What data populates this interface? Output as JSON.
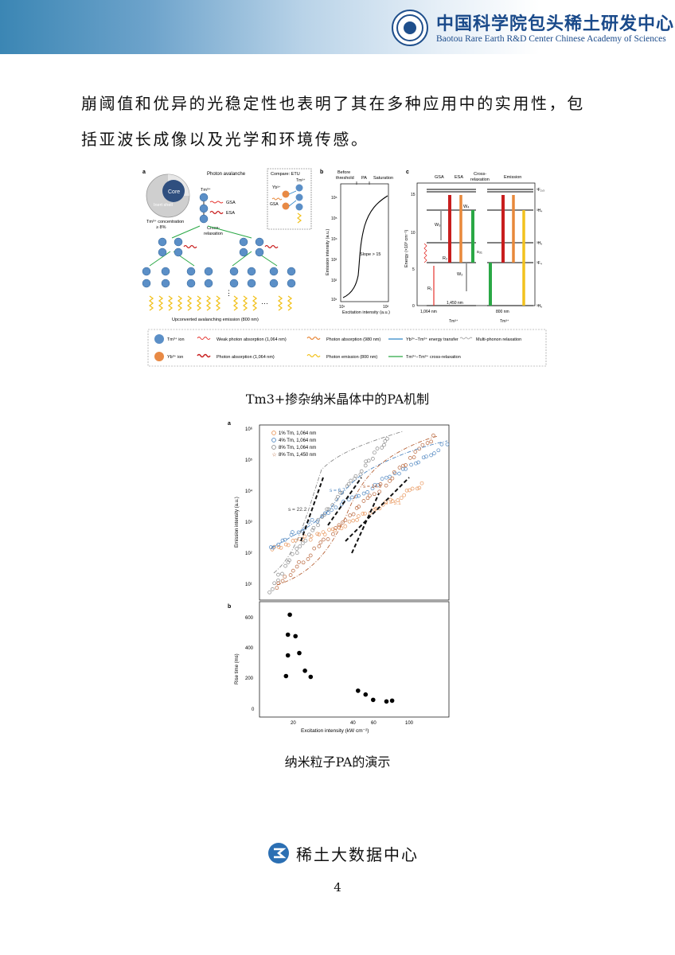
{
  "header": {
    "org_cn": "中国科学院包头稀土研发中心",
    "org_en": "Baotou Rare Earth R&D Center Chinese Academy of Sciences"
  },
  "body": {
    "line1": "崩阈值和优异的光稳定性也表明了其在多种应用中的实用性，包",
    "line2": "括亚波长成像以及光学和环境传感。"
  },
  "figure1": {
    "caption": "Tm3+掺杂纳米晶体中的PA机制",
    "panel_a": {
      "tag": "a",
      "core": "Core",
      "shell": "Inert shell",
      "conc1": "Tm³⁺ concentration",
      "conc2": "≥ 8%",
      "title": "Photon avalanche",
      "ion": "Tm³⁺",
      "gsa": "GSA",
      "esa": "ESA",
      "cross1": "Cross-",
      "cross2": "relaxation",
      "etu_title": "Compare: ETU",
      "etu_tm": "Tm³⁺",
      "etu_yb": "Yb³⁺",
      "etu_gsa": "GSA",
      "dots": "⋮",
      "ellipsis": "···",
      "emission": "Upconverted avalanching emission (800 nm)"
    },
    "panel_b": {
      "tag": "b",
      "phase1a": "Before",
      "phase1b": "threshold",
      "phase2": "PA",
      "phase3": "Saturation",
      "ylabel": "Emission intensity (a.u.)",
      "xlabel": "Excitation intensity (a.u.)",
      "slope": "Slope > 15",
      "yticks": [
        "10⁶",
        "10⁵",
        "10⁴",
        "10³",
        "10²",
        "10¹"
      ],
      "xticks": [
        "10¹",
        "10²"
      ]
    },
    "panel_c": {
      "tag": "c",
      "cols": [
        "GSA",
        "ESA",
        "Cross-",
        "relaxation",
        "Emission"
      ],
      "ylabel": "Energy (×10³ cm⁻¹)",
      "yticks": [
        "15",
        "10",
        "5",
        "0"
      ],
      "levels": [
        "³F₂,₃",
        "³H₄",
        "³H₅",
        "³F₄",
        "³H₆"
      ],
      "labels": {
        "r1": "R₁",
        "r2": "R₂",
        "w2": "W₂",
        "w3": "W₃",
        "w4": "W₄",
        "s31": "s₃₁"
      },
      "wl1": "1,064 nm",
      "wl2": "1,450 nm",
      "wl3": "800 nm",
      "ion1": "Tm³⁺",
      "ion2": "Tm³⁺"
    },
    "legend": [
      {
        "label": "Tm³⁺ ion",
        "color": "#5b8fc7"
      },
      {
        "label": "Yb³⁺ ion",
        "color": "#e88a45"
      },
      {
        "label": "Weak photon absorption (1,064 nm)",
        "color": "#e5322d"
      },
      {
        "label": "Photon absorption (1,064 nm)",
        "color": "#c81e1e"
      },
      {
        "label": "Photon absorption (980 nm)",
        "color": "#e8883a"
      },
      {
        "label": "Photon emission (800 nm)",
        "color": "#f2c21e"
      },
      {
        "label": "Yb³⁺–Tm³⁺ energy transfer",
        "color": "#2f86c8"
      },
      {
        "label": "Tm³⁺–Tm³⁺ cross-relaxation",
        "color": "#2aa845"
      },
      {
        "label": "Multi-phonon relaxation",
        "color": "#999999"
      }
    ]
  },
  "figure2": {
    "caption": "纳米粒子PA的演示",
    "panel_a_tag": "a",
    "panel_b_tag": "b",
    "legend": [
      {
        "label": "1% Tm, 1,064 nm",
        "color": "#e8955a",
        "marker": "circle"
      },
      {
        "label": "4% Tm, 1,064 nm",
        "color": "#4f86c0",
        "marker": "circle"
      },
      {
        "label": "8% Tm, 1,064 nm",
        "color": "#8a8a8a",
        "marker": "circle"
      },
      {
        "label": "8% Tm, 1,450 nm",
        "color": "#b8653a",
        "marker": "star"
      }
    ],
    "slopes": [
      {
        "label": "s = 22.2",
        "color": "#444444"
      },
      {
        "label": "s = 6.7",
        "color": "#4f86c0"
      },
      {
        "label": "s = 14.9",
        "color": "#b8653a"
      },
      {
        "label": "s = 5.1",
        "color": "#e8955a"
      }
    ],
    "ylabel_a": "Emission intensity (a.u.)",
    "yticks_a": [
      "10⁶",
      "10⁵",
      "10⁴",
      "10³",
      "10²",
      "10¹"
    ],
    "ylabel_b": "Rise time (ms)",
    "yticks_b": [
      "600",
      "400",
      "200",
      "0"
    ],
    "xticks_b": [
      "20",
      "40",
      "60",
      "100"
    ],
    "xlabel": "Excitation intensity (kW cm⁻²)",
    "rise_points": [
      [
        24,
        215
      ],
      [
        25,
        350
      ],
      [
        25,
        485
      ],
      [
        26,
        615
      ],
      [
        29,
        475
      ],
      [
        31,
        365
      ],
      [
        34,
        250
      ],
      [
        37,
        210
      ],
      [
        62,
        120
      ],
      [
        66,
        95
      ],
      [
        70,
        60
      ],
      [
        77,
        50
      ],
      [
        80,
        55
      ]
    ]
  },
  "footer": {
    "brand": "稀土大数据中心",
    "page": "4"
  }
}
